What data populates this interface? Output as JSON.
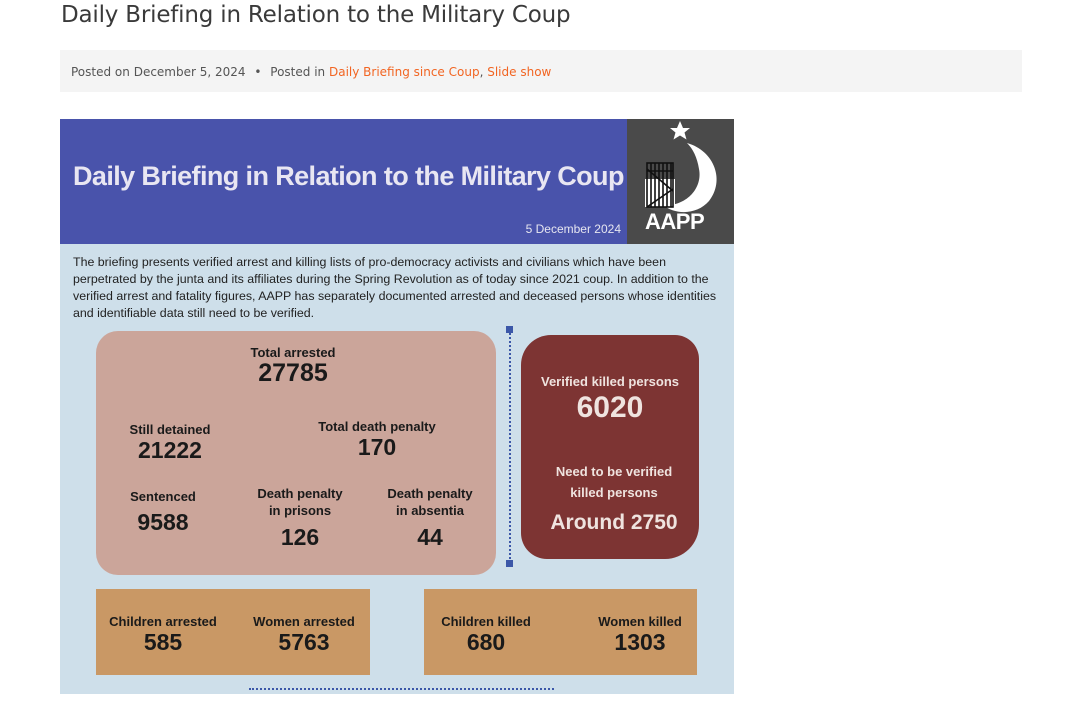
{
  "post": {
    "title": "Daily Briefing in Relation to the Military Coup",
    "posted_on_label": "Posted on",
    "date": "December 5, 2024",
    "separator": "•",
    "posted_in_label": "Posted in",
    "categories": [
      "Daily Briefing since Coup",
      "Slide show"
    ],
    "category_separator": ","
  },
  "infographic": {
    "banner_title": "Daily Briefing in Relation to the Military Coup",
    "banner_date": "5 December 2024",
    "logo_text": "AAPP",
    "intro": "The briefing presents verified arrest and killing lists of pro-democracy activists and civilians which have been perpetrated by the junta and its affiliates during the Spring Revolution as of today since 2021 coup. In addition to the verified arrest and fatality figures, AAPP has separately documented arrested and deceased persons whose identities and identifiable data still need to be verified.",
    "arrests": {
      "total_arrested": {
        "label": "Total arrested",
        "value": "27785"
      },
      "still_detained": {
        "label": "Still detained",
        "value": "21222"
      },
      "total_death_penalty": {
        "label": "Total death penalty",
        "value": "170"
      },
      "sentenced": {
        "label": "Sentenced",
        "value": "9588"
      },
      "death_penalty_prisons": {
        "label_1": "Death penalty",
        "label_2": "in prisons",
        "value": "126"
      },
      "death_penalty_absentia": {
        "label_1": "Death penalty",
        "label_2": "in absentia",
        "value": "44"
      }
    },
    "killed": {
      "verified": {
        "label": "Verified killed persons",
        "value": "6020"
      },
      "unverified": {
        "label_1": "Need to be verified",
        "label_2": "killed persons",
        "value": "Around 2750"
      }
    },
    "bottom": {
      "children_arrested": {
        "label": "Children arrested",
        "value": "585"
      },
      "women_arrested": {
        "label": "Women arrested",
        "value": "5763"
      },
      "children_killed": {
        "label": "Children killed",
        "value": "680"
      },
      "women_killed": {
        "label": "Women killed",
        "value": "1303"
      }
    }
  },
  "colors": {
    "link": "#f26522",
    "banner": "#4953ab",
    "arrest_box": "#cba59a",
    "killed_box": "#7d3433",
    "orange_box": "#c99865",
    "background": "#cedfea"
  }
}
